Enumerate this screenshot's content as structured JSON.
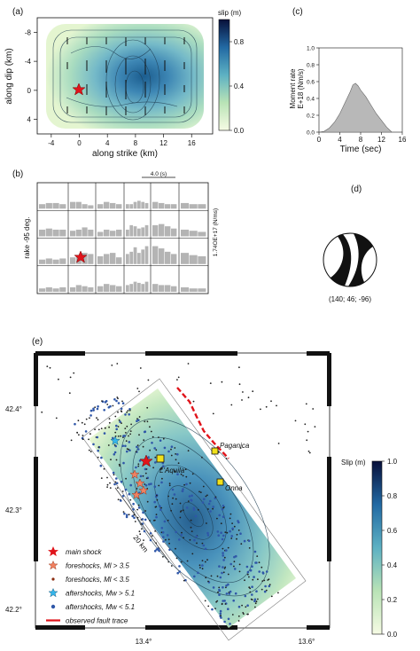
{
  "panel_a": {
    "letter": "(a)",
    "xlabel": "along strike (km)",
    "ylabel": "along dip (km)",
    "colorbar_title": "slip (m)",
    "x_ticks": [
      "-4",
      "0",
      "4",
      "8",
      "12",
      "16"
    ],
    "y_ticks": [
      "-8",
      "-4",
      "0",
      "4"
    ],
    "cb_ticks": [
      "0.8",
      "0.4",
      "0.0"
    ],
    "hypocenter": {
      "x": 0,
      "y": 0
    }
  },
  "panel_b": {
    "letter": "(b)",
    "left_label": "rake -95 deg.",
    "right_label": "1.74OE+17 (N/ms)",
    "scale_label": "4.0 (s)"
  },
  "panel_c": {
    "letter": "(c)",
    "ylabel_top": "Moment rate",
    "ylabel_bottom": "E+18 (Nm/s)",
    "xlabel": "Time (sec)",
    "x_ticks": [
      "0",
      "4",
      "8",
      "12",
      "16"
    ],
    "y_ticks": [
      "1.0",
      "0.8",
      "0.6",
      "0.4",
      "0.2",
      "0.0"
    ]
  },
  "panel_d": {
    "letter": "(d)",
    "mechanism": "(140; 46; -96)"
  },
  "panel_e": {
    "letter": "(e)",
    "lat_ticks": [
      "42.4°",
      "42.3°",
      "42.2°"
    ],
    "lon_ticks": [
      "13.4°",
      "13.6°"
    ],
    "scale_label": "20 km",
    "colorbar_title": "Slip (m)",
    "cb_ticks": [
      "1.0",
      "0.8",
      "0.6",
      "0.4",
      "0.2",
      "0.0"
    ],
    "towns": [
      "Paganica",
      "L'Aquila",
      "Onna"
    ],
    "legend": [
      {
        "label": "main shock",
        "icon": "red-star"
      },
      {
        "label": "foreshocks, Ml > 3.5",
        "icon": "orange-star"
      },
      {
        "label": "foreshocks, Ml < 3.5",
        "icon": "small-dot"
      },
      {
        "label": "aftershocks, Mw > 5.1",
        "icon": "cyan-star"
      },
      {
        "label": "aftershocks, Mw < 5.1",
        "icon": "blue-dot"
      },
      {
        "label": "observed fault trace",
        "icon": "red-dash"
      }
    ]
  },
  "chart_data": [
    {
      "type": "area",
      "panel": "c",
      "x": [
        0,
        1,
        2,
        3,
        4,
        5,
        6,
        6.5,
        7,
        7.5,
        8,
        9,
        10,
        11,
        12,
        13,
        14
      ],
      "y": [
        0,
        0.01,
        0.05,
        0.12,
        0.22,
        0.35,
        0.48,
        0.56,
        0.58,
        0.55,
        0.5,
        0.42,
        0.32,
        0.22,
        0.14,
        0.06,
        0
      ],
      "xlabel": "Time (sec)",
      "ylabel": "Moment rate E+18 (Nm/s)",
      "xlim": [
        0,
        16
      ],
      "ylim": [
        0,
        1.0
      ]
    },
    {
      "type": "bar",
      "panel": "b",
      "rows": [
        [
          [
            0.2,
            0.25,
            0.25,
            0.2
          ],
          [
            0.3,
            0.3,
            0.2,
            0.15
          ],
          [
            0.2,
            0.3,
            0.25,
            0.2
          ],
          [
            0.2,
            0.2,
            0.3,
            0.35,
            0.3,
            0.25
          ],
          [
            0.3,
            0.25,
            0.2,
            0.2
          ],
          [
            0.25,
            0.2,
            0.2
          ]
        ],
        [
          [
            0.3,
            0.35,
            0.3,
            0.3
          ],
          [
            0.25,
            0.3,
            0.4,
            0.3
          ],
          [
            0.2,
            0.3,
            0.25,
            0.3
          ],
          [
            0.3,
            0.5,
            0.45,
            0.35,
            0.4,
            0.5
          ],
          [
            0.5,
            0.55,
            0.45,
            0.35
          ],
          [
            0.3,
            0.25,
            0.2
          ]
        ],
        [
          [
            0.2,
            0.25,
            0.2,
            0.25
          ],
          [
            0.3,
            0.35,
            0.5,
            0.45
          ],
          [
            0.35,
            0.45,
            0.5,
            0.3
          ],
          [
            0.45,
            0.55,
            0.75,
            0.5,
            0.65,
            0.8
          ],
          [
            0.8,
            0.7,
            0.55,
            0.45
          ],
          [
            0.5,
            0.4,
            0.35
          ]
        ],
        [
          [
            0.15,
            0.2,
            0.15,
            0.2
          ],
          [
            0.2,
            0.3,
            0.25,
            0.2
          ],
          [
            0.25,
            0.35,
            0.3,
            0.25
          ],
          [
            0.3,
            0.35,
            0.45,
            0.4,
            0.35,
            0.45
          ],
          [
            0.35,
            0.3,
            0.3,
            0.25
          ],
          [
            0.2,
            0.15,
            0.15
          ]
        ]
      ]
    }
  ]
}
